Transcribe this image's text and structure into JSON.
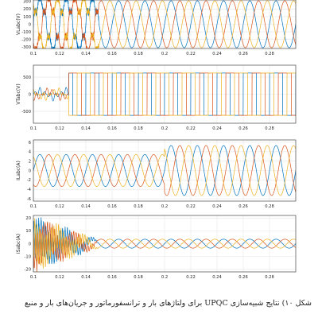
{
  "caption": "شکل ۱۰) نتایج شبیه‌سازی UPQC برای ولتاژهای بار و ترانسفورماتور و جریان‌های بار و منبع",
  "colors": {
    "phase_a": "#0072bd",
    "phase_b": "#d95319",
    "phase_c": "#edb120",
    "phase_d": "#7e2f8e",
    "phase_e": "#77ac30",
    "grid": "#e6e6e6",
    "axis": "#262626"
  },
  "chart_data": [
    {
      "type": "line",
      "ylabel": "VLabc(V)",
      "xlim": [
        0.1,
        0.3
      ],
      "ylim": [
        -320,
        320
      ],
      "x_ticks": [
        "0.1",
        "0.12",
        "0.14",
        "0.16",
        "0.18",
        "0.2",
        "0.22",
        "0.24",
        "0.26",
        "0.28"
      ],
      "y_ticks": [
        {
          "value": 300,
          "label": "300"
        },
        {
          "value": 200,
          "label": "200"
        },
        {
          "value": 100,
          "label": "100"
        },
        {
          "value": 0,
          "label": "0"
        },
        {
          "value": -100,
          "label": "-100"
        },
        {
          "value": -200,
          "label": "-200"
        },
        {
          "value": -300,
          "label": "-300"
        }
      ],
      "series": [
        {
          "phase": "a",
          "waveform": "sine",
          "amplitude": 310,
          "frequency_hz": 50,
          "phase_deg": 0,
          "distorted_until": 0.15
        },
        {
          "phase": "b",
          "waveform": "sine",
          "amplitude": 310,
          "frequency_hz": 50,
          "phase_deg": -120,
          "distorted_until": 0.15
        },
        {
          "phase": "c",
          "waveform": "sine",
          "amplitude": 310,
          "frequency_hz": 50,
          "phase_deg": 120,
          "distorted_until": 0.15
        }
      ]
    },
    {
      "type": "line",
      "ylabel": "VTabc(V)",
      "xlim": [
        0.1,
        0.3
      ],
      "ylim": [
        -850,
        850
      ],
      "x_ticks": [
        "0.1",
        "0.12",
        "0.14",
        "0.16",
        "0.18",
        "0.2",
        "0.22",
        "0.24",
        "0.26",
        "0.28"
      ],
      "y_ticks": [
        {
          "value": 500,
          "label": "500"
        },
        {
          "value": 0,
          "label": "0"
        },
        {
          "value": -500,
          "label": "-500"
        }
      ],
      "series": [
        {
          "phase": "a",
          "waveform": "square",
          "amplitude": 620,
          "frequency_hz": 50,
          "phase_deg": 0,
          "start": 0.127
        },
        {
          "phase": "b",
          "waveform": "square",
          "amplitude": 620,
          "frequency_hz": 50,
          "phase_deg": -120,
          "start": 0.127
        },
        {
          "phase": "c",
          "waveform": "square",
          "amplitude": 620,
          "frequency_hz": 50,
          "phase_deg": 120,
          "start": 0.127
        }
      ]
    },
    {
      "type": "line",
      "ylabel": "ILabc(A)",
      "xlim": [
        0.1,
        0.3
      ],
      "ylim": [
        -6.5,
        6.5
      ],
      "x_ticks": [
        "0.1",
        "0.12",
        "0.14",
        "0.16",
        "0.18",
        "0.2",
        "0.22",
        "0.24",
        "0.26",
        "0.28"
      ],
      "y_ticks": [
        {
          "value": 6,
          "label": "6"
        },
        {
          "value": 4,
          "label": "4"
        },
        {
          "value": 2,
          "label": "2"
        },
        {
          "value": 0,
          "label": "0"
        },
        {
          "value": -2,
          "label": "-2"
        },
        {
          "value": -4,
          "label": "-4"
        },
        {
          "value": -6,
          "label": "-6"
        }
      ],
      "series": [
        {
          "phase": "a",
          "waveform": "sine",
          "amplitude": 3.4,
          "amplitude_after": 5.3,
          "step_time": 0.2,
          "frequency_hz": 50,
          "phase_deg": 0
        },
        {
          "phase": "b",
          "waveform": "sine",
          "amplitude": 3.4,
          "amplitude_after": 5.3,
          "step_time": 0.2,
          "frequency_hz": 50,
          "phase_deg": -120
        },
        {
          "phase": "c",
          "waveform": "sine",
          "amplitude": 3.4,
          "amplitude_after": 5.3,
          "step_time": 0.2,
          "frequency_hz": 50,
          "phase_deg": 120
        }
      ]
    },
    {
      "type": "line",
      "ylabel": "ISabc(A)",
      "xlim": [
        0.1,
        0.3
      ],
      "ylim": [
        -22,
        22
      ],
      "x_ticks": [
        "0.1",
        "0.12",
        "0.14",
        "0.16",
        "0.18",
        "0.2",
        "0.22",
        "0.24",
        "0.26",
        "0.28"
      ],
      "y_ticks": [
        {
          "value": 20,
          "label": "20"
        },
        {
          "value": 10,
          "label": "10"
        },
        {
          "value": 0,
          "label": "0"
        },
        {
          "value": -10,
          "label": "-10"
        },
        {
          "value": -20,
          "label": "-20"
        }
      ],
      "series": [
        {
          "phase": "a",
          "waveform": "sine",
          "amplitude": 3.5,
          "frequency_hz": 50,
          "phase_deg": 0,
          "transient_until": 0.15
        },
        {
          "phase": "b",
          "waveform": "sine",
          "amplitude": 3.5,
          "frequency_hz": 50,
          "phase_deg": -120,
          "transient_until": 0.15
        },
        {
          "phase": "c",
          "waveform": "sine",
          "amplitude": 3.5,
          "frequency_hz": 50,
          "phase_deg": 120,
          "transient_until": 0.15
        }
      ]
    }
  ]
}
